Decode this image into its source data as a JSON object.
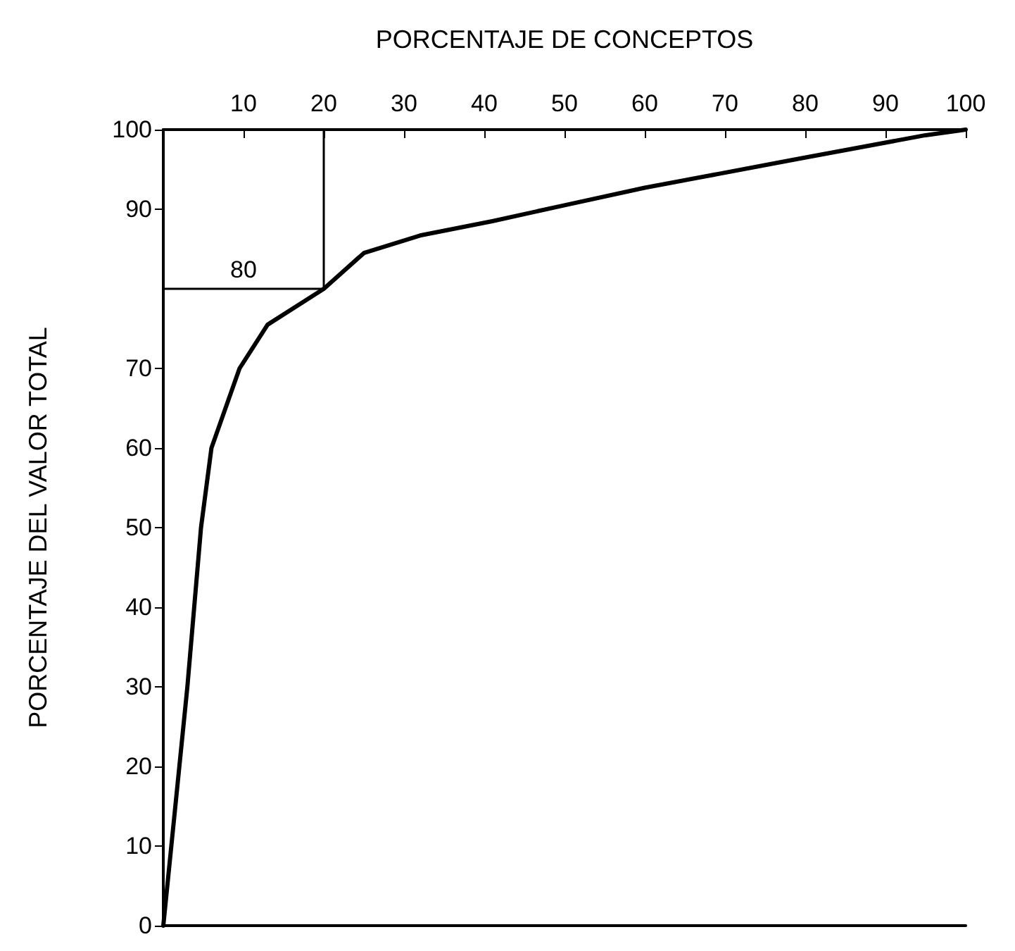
{
  "chart_data": {
    "type": "line",
    "xlabel": "PORCENTAJE DE CONCEPTOS",
    "ylabel": "PORCENTAJE DEL VALOR TOTAL",
    "x": [
      0,
      1,
      3,
      4.7,
      6,
      9.5,
      13,
      20,
      25,
      32,
      41,
      50,
      60,
      79,
      95,
      100
    ],
    "series": [
      {
        "color": "#000000",
        "values": [
          0,
          10,
          30,
          50,
          60,
          70,
          75.5,
          80,
          84.5,
          86.7,
          88.5,
          90.5,
          92.7,
          96.3,
          99.3,
          100
        ]
      }
    ],
    "xlim": [
      0,
      100
    ],
    "xticks": [
      {
        "value": 0,
        "label": null
      },
      10,
      20,
      30,
      40,
      50,
      60,
      70,
      80,
      90,
      100
    ],
    "ylim": [
      0,
      100
    ],
    "yticks": [
      0,
      10,
      20,
      30,
      40,
      50,
      60,
      70,
      90,
      100
    ],
    "ref_lines": [
      {
        "axis": "y",
        "value": 80,
        "label": "80"
      },
      {
        "axis": "x",
        "value": 20
      }
    ],
    "grid": false,
    "marker": "none",
    "line_style": "solid"
  }
}
